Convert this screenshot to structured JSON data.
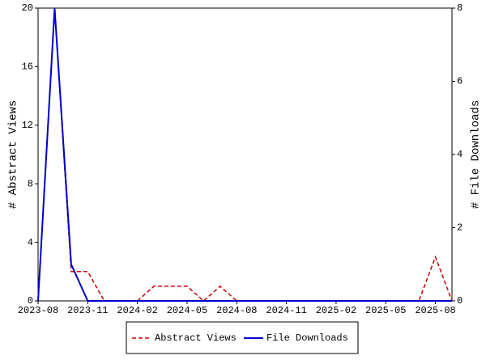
{
  "chart_data": {
    "type": "line",
    "categories": [
      "2023-08",
      null,
      null,
      "2023-11",
      null,
      null,
      "2024-02",
      null,
      null,
      "2024-05",
      null,
      null,
      "2024-08",
      null,
      null,
      "2024-11",
      null,
      null,
      "2025-02",
      null,
      null,
      "2025-05",
      null,
      null,
      "2025-08",
      null
    ],
    "series": [
      {
        "name": "Abstract Views",
        "color": "#cc0000",
        "dash": true,
        "values": [
          0,
          20,
          2,
          2,
          0,
          0,
          0,
          1,
          1,
          1,
          0,
          1,
          0,
          0,
          0,
          0,
          0,
          0,
          0,
          0,
          0,
          0,
          0,
          0,
          3,
          0
        ]
      },
      {
        "name": "File Downloads",
        "color": "#0000cc",
        "axis": "y2",
        "values": [
          0,
          8,
          1,
          0,
          0,
          0,
          0,
          0,
          0,
          0,
          0,
          0,
          0,
          0,
          0,
          0,
          0,
          0,
          0,
          0,
          0,
          0,
          0,
          0,
          0,
          0
        ]
      }
    ],
    "ylabel": "# Abstract Views",
    "y2label": "# File Downloads",
    "ylim": [
      0,
      20
    ],
    "yticks": [
      0,
      4,
      8,
      12,
      16,
      20
    ],
    "y2lim": [
      0,
      8
    ],
    "y2ticks": [
      0,
      2,
      4,
      6,
      8
    ],
    "legend": "bottom"
  }
}
